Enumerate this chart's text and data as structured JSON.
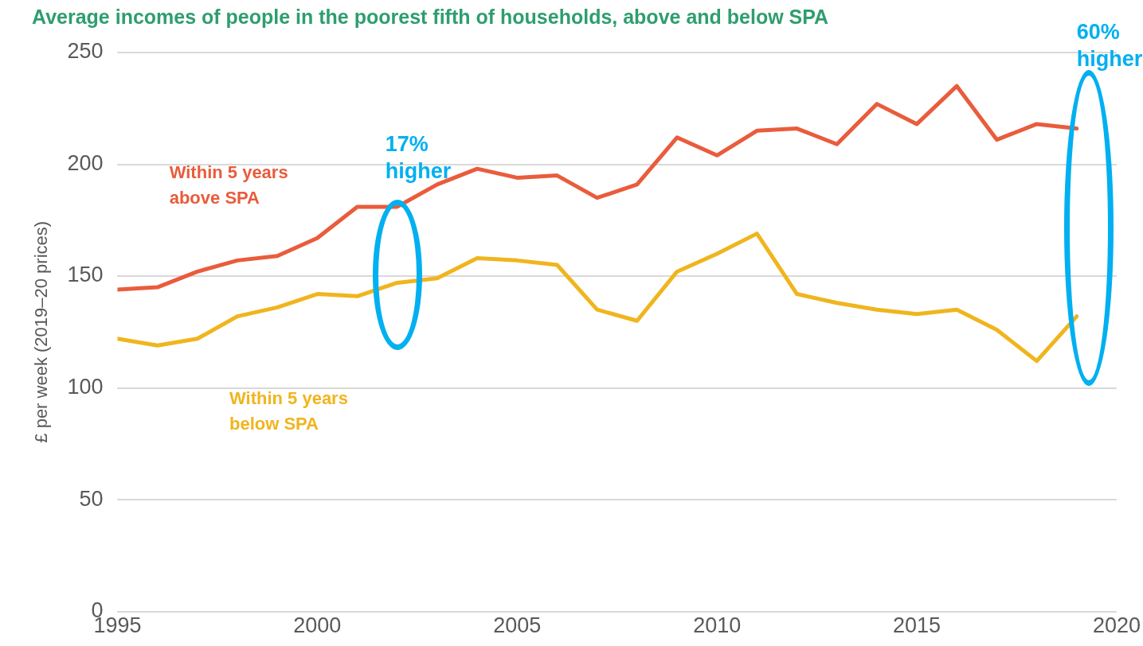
{
  "chart_data": {
    "type": "line",
    "title": "Average incomes of people in the poorest fifth of households, above and below SPA",
    "ylabel": "£ per week (2019–20 prices)",
    "x": [
      1995,
      1996,
      1997,
      1998,
      1999,
      2000,
      2001,
      2002,
      2003,
      2004,
      2005,
      2006,
      2007,
      2008,
      2009,
      2010,
      2011,
      2012,
      2013,
      2014,
      2015,
      2016,
      2017,
      2018,
      2019
    ],
    "series": [
      {
        "name": "Within 5 years above SPA",
        "color": "#e95c3c",
        "values": [
          144,
          145,
          152,
          157,
          159,
          167,
          181,
          181,
          191,
          198,
          194,
          195,
          185,
          191,
          212,
          204,
          215,
          216,
          209,
          227,
          218,
          235,
          211,
          218,
          216
        ]
      },
      {
        "name": "Within 5 years below SPA",
        "color": "#f0b51e",
        "values": [
          122,
          119,
          122,
          132,
          136,
          142,
          141,
          147,
          149,
          158,
          157,
          155,
          135,
          130,
          152,
          160,
          169,
          142,
          138,
          135,
          133,
          135,
          126,
          112,
          132
        ]
      }
    ],
    "xlim": [
      1995,
      2020
    ],
    "xticks": [
      1995,
      2000,
      2005,
      2010,
      2015,
      2020
    ],
    "ylim": [
      0,
      250
    ],
    "yticks": [
      0,
      50,
      100,
      150,
      200,
      250
    ],
    "grid": "y",
    "legend": false,
    "line_style": "solid",
    "marker": "none",
    "annotations": [
      "17% higher",
      "60% higher"
    ]
  }
}
